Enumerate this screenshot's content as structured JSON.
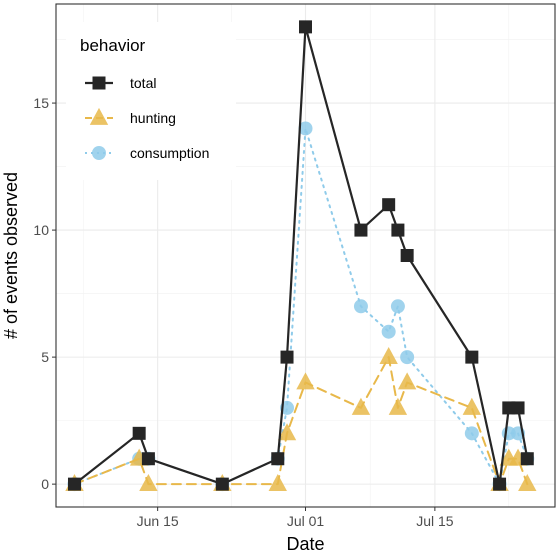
{
  "chart_data": {
    "type": "line",
    "xlabel": "Date",
    "ylabel": "# of events observed",
    "x_tick_labels": [
      "Jun 15",
      "Jul 01",
      "Jul 15"
    ],
    "x_tick_dates": [
      "2022-06-15",
      "2022-07-01",
      "2022-07-15"
    ],
    "y_tick_labels": [
      "0",
      "5",
      "10",
      "15"
    ],
    "y_ticks": [
      0,
      5,
      10,
      15
    ],
    "xlim": [
      "2022-06-04",
      "2022-07-28"
    ],
    "ylim": [
      -0.9,
      18.9
    ],
    "grid": true,
    "legend_position": "top-left",
    "legend": {
      "title": "behavior"
    },
    "series": [
      {
        "name": "total",
        "color": "#262626",
        "marker": "square",
        "line_style": "solid",
        "points": [
          [
            "2022-06-06",
            0
          ],
          [
            "2022-06-13",
            2
          ],
          [
            "2022-06-14",
            1
          ],
          [
            "2022-06-22",
            0
          ],
          [
            "2022-06-28",
            1
          ],
          [
            "2022-06-29",
            5
          ],
          [
            "2022-07-01",
            18
          ],
          [
            "2022-07-07",
            10
          ],
          [
            "2022-07-10",
            11
          ],
          [
            "2022-07-11",
            10
          ],
          [
            "2022-07-12",
            9
          ],
          [
            "2022-07-19",
            5
          ],
          [
            "2022-07-22",
            0
          ],
          [
            "2022-07-23",
            3
          ],
          [
            "2022-07-24",
            3
          ],
          [
            "2022-07-25",
            1
          ]
        ]
      },
      {
        "name": "hunting",
        "color": "#E8B84A",
        "marker": "triangle",
        "line_style": "dashed",
        "points": [
          [
            "2022-06-06",
            0
          ],
          [
            "2022-06-13",
            1
          ],
          [
            "2022-06-14",
            0
          ],
          [
            "2022-06-22",
            0
          ],
          [
            "2022-06-28",
            0
          ],
          [
            "2022-06-29",
            2
          ],
          [
            "2022-07-01",
            4
          ],
          [
            "2022-07-07",
            3
          ],
          [
            "2022-07-10",
            5
          ],
          [
            "2022-07-11",
            3
          ],
          [
            "2022-07-12",
            4
          ],
          [
            "2022-07-19",
            3
          ],
          [
            "2022-07-22",
            0
          ],
          [
            "2022-07-23",
            1
          ],
          [
            "2022-07-24",
            1
          ],
          [
            "2022-07-25",
            0
          ]
        ]
      },
      {
        "name": "consumption",
        "color": "#8FCBEA",
        "marker": "circle",
        "line_style": "dotted",
        "points": [
          [
            "2022-06-06",
            0
          ],
          [
            "2022-06-13",
            1
          ],
          [
            "2022-06-14",
            1
          ],
          [
            "2022-06-22",
            0
          ],
          [
            "2022-06-28",
            1
          ],
          [
            "2022-06-29",
            3
          ],
          [
            "2022-07-01",
            14
          ],
          [
            "2022-07-07",
            7
          ],
          [
            "2022-07-10",
            6
          ],
          [
            "2022-07-11",
            7
          ],
          [
            "2022-07-12",
            5
          ],
          [
            "2022-07-19",
            2
          ],
          [
            "2022-07-22",
            0
          ],
          [
            "2022-07-23",
            2
          ],
          [
            "2022-07-24",
            2
          ],
          [
            "2022-07-25",
            1
          ]
        ]
      }
    ]
  }
}
